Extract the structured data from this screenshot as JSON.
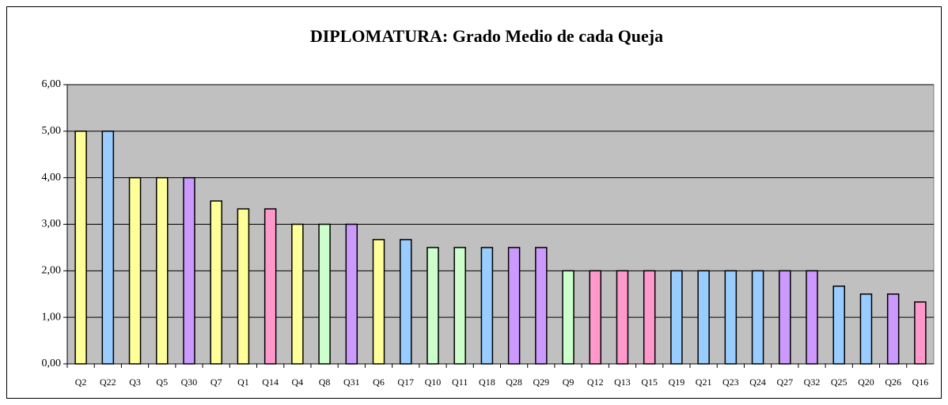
{
  "chart_data": {
    "type": "bar",
    "title": "DIPLOMATURA: Grado Medio de cada Queja",
    "categories": [
      "Q2",
      "Q22",
      "Q3",
      "Q5",
      "Q30",
      "Q7",
      "Q1",
      "Q14",
      "Q4",
      "Q8",
      "Q31",
      "Q6",
      "Q17",
      "Q10",
      "Q11",
      "Q18",
      "Q28",
      "Q29",
      "Q9",
      "Q12",
      "Q13",
      "Q15",
      "Q19",
      "Q21",
      "Q23",
      "Q24",
      "Q27",
      "Q32",
      "Q25",
      "Q20",
      "Q26",
      "Q16"
    ],
    "values": [
      5,
      5,
      4,
      4,
      4,
      3.5,
      3.33,
      3.33,
      3,
      3,
      3,
      2.67,
      2.67,
      2.5,
      2.5,
      2.5,
      2.5,
      2.5,
      2,
      2,
      2,
      2,
      2,
      2,
      2,
      2,
      2,
      2,
      1.67,
      1.5,
      1.5,
      1.33
    ],
    "colors": [
      "#ffff99",
      "#99ccff",
      "#ffff99",
      "#ffff99",
      "#cc99ff",
      "#ffff99",
      "#ffff99",
      "#ff99cc",
      "#ffff99",
      "#ccffcc",
      "#cc99ff",
      "#ffff99",
      "#99ccff",
      "#ccffcc",
      "#ccffcc",
      "#99ccff",
      "#cc99ff",
      "#cc99ff",
      "#ccffcc",
      "#ff99cc",
      "#ff99cc",
      "#ff99cc",
      "#99ccff",
      "#99ccff",
      "#99ccff",
      "#99ccff",
      "#cc99ff",
      "#cc99ff",
      "#99ccff",
      "#99ccff",
      "#cc99ff",
      "#ff99cc"
    ],
    "ylim": [
      0,
      6
    ],
    "yticks": [
      {
        "value": 0,
        "label": "0,00"
      },
      {
        "value": 1,
        "label": "1,00"
      },
      {
        "value": 2,
        "label": "2,00"
      },
      {
        "value": 3,
        "label": "3,00"
      },
      {
        "value": 4,
        "label": "4,00"
      },
      {
        "value": 5,
        "label": "5,00"
      },
      {
        "value": 6,
        "label": "6,00"
      }
    ],
    "grid": true,
    "plot_background": "#c0c0c0"
  }
}
